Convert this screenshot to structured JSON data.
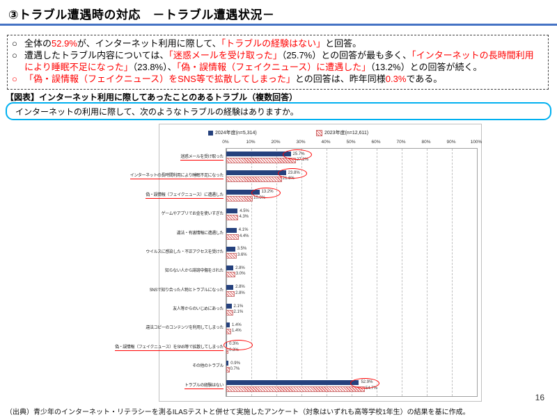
{
  "page": {
    "number": "16"
  },
  "header": {
    "title": "③トラブル遭遇時の対応　－トラブル遭遇状況－",
    "rule_color": "#4472C4"
  },
  "summary": {
    "bullets": [
      {
        "marker": "○",
        "marker_color": "#000000",
        "segments": [
          {
            "text": "全体の",
            "color": "#000000"
          },
          {
            "text": "52.9%",
            "color": "#FF0000"
          },
          {
            "text": "が、インターネット利用に際して、",
            "color": "#000000"
          },
          {
            "text": "「トラブルの経験はない」",
            "color": "#FF0000"
          },
          {
            "text": "と回答。",
            "color": "#000000"
          }
        ]
      },
      {
        "marker": "○",
        "marker_color": "#000000",
        "segments": [
          {
            "text": "遭遇したトラブル内容については、",
            "color": "#000000"
          },
          {
            "text": "「迷惑メールを受け取った」",
            "color": "#FF0000"
          },
          {
            "text": "（25.7%）との回答が最も多く、",
            "color": "#000000"
          },
          {
            "text": "「インターネットの長時間利用により睡眠不足になった」",
            "color": "#FF0000"
          },
          {
            "text": "（23.8%）、",
            "color": "#000000"
          },
          {
            "text": "「偽・誤情報（フェイクニュース）に遭遇した」",
            "color": "#FF0000"
          },
          {
            "text": "（13.2%）との回答が続く。",
            "color": "#000000"
          }
        ]
      },
      {
        "marker": "○",
        "marker_color": "#FF0000",
        "segments": [
          {
            "text": "「偽・誤情報（フェイクニュース）をSNS等で拡散してしまった」",
            "color": "#FF0000"
          },
          {
            "text": "との回答は、昨年同様",
            "color": "#000000"
          },
          {
            "text": "0.3%",
            "color": "#FF0000"
          },
          {
            "text": "である。",
            "color": "#000000"
          }
        ]
      }
    ]
  },
  "figure_label": "【図表】インターネット利用に際してあったことのあるトラブル（複数回答）",
  "question": "インターネットの利用に際して、次のようなトラブルの経験はありますか。",
  "source": "（出典）青少年のインターネット・リテラシーを測るILASテストと併せて実施したアンケート（対象はいずれも高等学校1年生）の結果を基に作成。",
  "chart_data": {
    "type": "bar",
    "orientation": "horizontal",
    "title": "",
    "xlabel": "",
    "ylabel": "",
    "xlim": [
      0,
      100
    ],
    "x_ticks": [
      "0%",
      "10%",
      "20%",
      "30%",
      "40%",
      "50%",
      "60%",
      "70%",
      "80%",
      "90%",
      "100%"
    ],
    "grid": true,
    "legend_position": "top",
    "legend": [
      {
        "label": "2024年度(n=5,314)",
        "color": "#25417D",
        "style": "solid"
      },
      {
        "label": "2023年度(n=12,611)",
        "color": "#E06666",
        "style": "hatched"
      }
    ],
    "categories": [
      "迷惑メールを受け取った",
      "インターネットの長時間利用により睡眠不足になった",
      "偽・誤情報（フェイクニュース）に遭遇した",
      "ゲームやアプリでお金を使いすぎた",
      "違法・有害情報に遭遇した",
      "ウイルスに感染した・不正アクセスを受けた",
      "知らない人から誹謗中傷をされた",
      "SNSで知り合った人物とトラブルになった",
      "友人等からのいじめにあった",
      "違法コピーのコンテンツを利用してしまった",
      "偽・誤情報（フェイクニュース）をSNS等で拡散してしまった",
      "その他のトラブル",
      "トラブルの経験はない"
    ],
    "series": [
      {
        "name": "2024年度(n=5,314)",
        "values": [
          25.7,
          23.8,
          13.2,
          4.5,
          4.1,
          3.5,
          2.8,
          2.8,
          2.1,
          1.4,
          0.3,
          0.9,
          52.9
        ]
      },
      {
        "name": "2023年度(n=12,611)",
        "values": [
          27.2,
          21.6,
          10.0,
          4.3,
          4.4,
          3.6,
          3.0,
          2.8,
          2.1,
          1.4,
          0.3,
          0.7,
          54.7
        ]
      }
    ],
    "emphasized_rows": [
      0,
      1,
      2,
      10,
      12
    ],
    "emphasis_color": "#FF0000"
  }
}
